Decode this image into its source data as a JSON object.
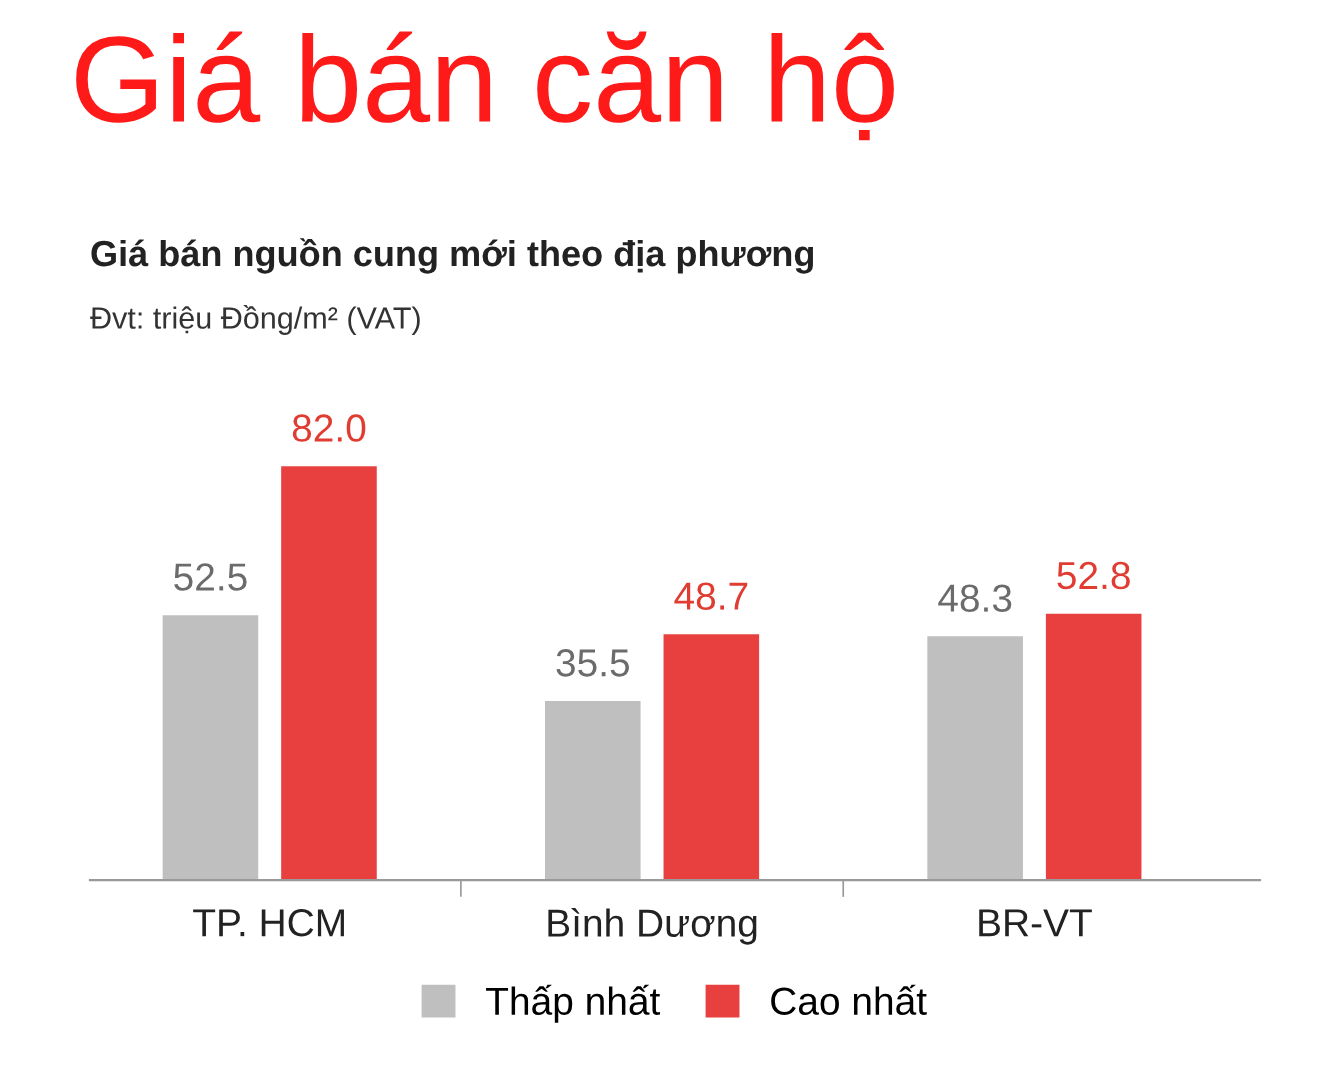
{
  "chart_data": {
    "type": "bar",
    "title": "Giá bán căn hộ",
    "subtitle": "Giá bán nguồn cung mới theo địa phương",
    "annotations": [
      "Đvt: triệu Đồng/m² (VAT)"
    ],
    "categories": [
      "TP. HCM",
      "Bình Dương",
      "BR-VT"
    ],
    "series": [
      {
        "name": "Thấp nhất",
        "color": "#bfbfbf",
        "values": [
          52.5,
          35.5,
          48.3
        ],
        "value_labels": [
          "52.5",
          "35.5",
          "48.3"
        ]
      },
      {
        "name": "Cao nhất",
        "color": "#e8403f",
        "values": [
          82.0,
          48.7,
          52.8
        ],
        "value_labels": [
          "82.0",
          "48.7",
          "52.8"
        ]
      }
    ],
    "legend": "bottom",
    "grid": false
  }
}
